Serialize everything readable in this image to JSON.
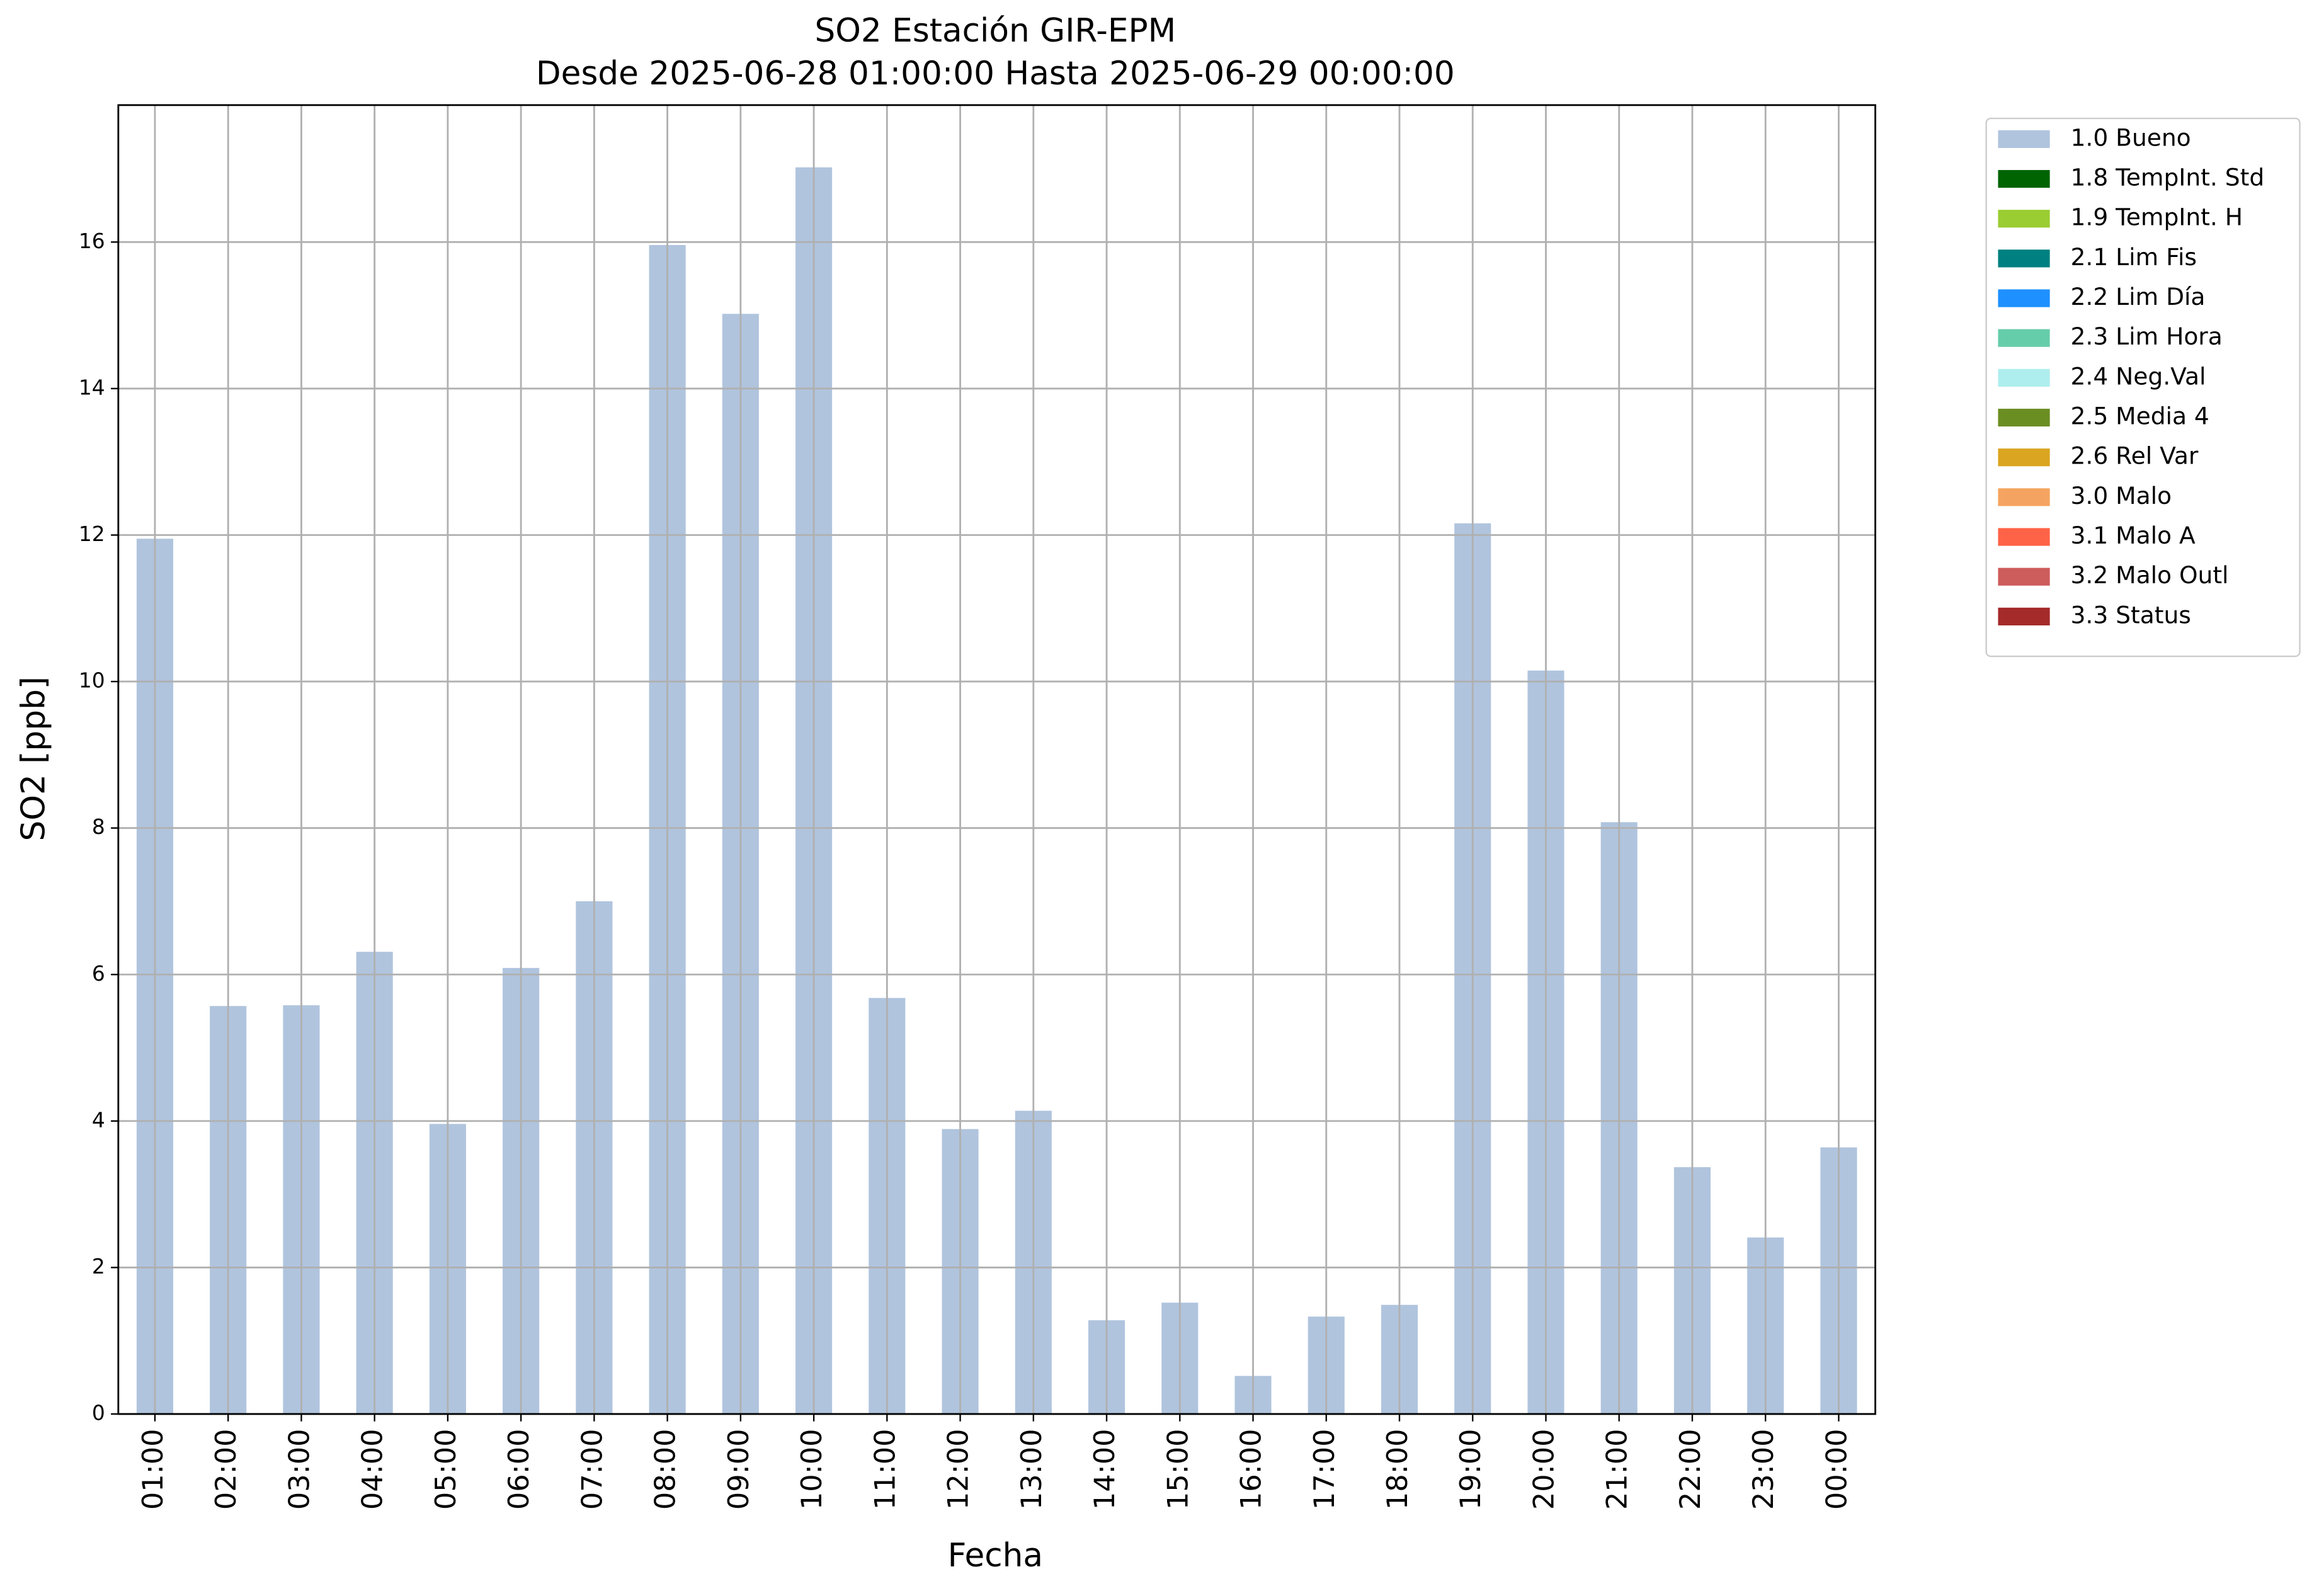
{
  "chart_data": {
    "type": "bar",
    "title": "SO2 Estación GIR-EPM",
    "subtitle": "Desde 2025-06-28 01:00:00 Hasta 2025-06-29 00:00:00",
    "x_label": "Fecha",
    "y_label": "SO2 [ppb]",
    "categories": [
      "01:00",
      "02:00",
      "03:00",
      "04:00",
      "05:00",
      "06:00",
      "07:00",
      "08:00",
      "09:00",
      "10:00",
      "11:00",
      "12:00",
      "13:00",
      "14:00",
      "15:00",
      "16:00",
      "17:00",
      "18:00",
      "19:00",
      "20:00",
      "21:00",
      "22:00",
      "23:00",
      "00:00"
    ],
    "series": [
      {
        "name": "1.0 Bueno",
        "color": "#b0c4de",
        "values": [
          11.95,
          5.57,
          5.58,
          6.31,
          3.96,
          6.09,
          7.0,
          15.96,
          15.02,
          17.02,
          5.68,
          3.89,
          4.14,
          1.28,
          1.52,
          0.52,
          1.33,
          1.49,
          12.16,
          10.15,
          8.08,
          3.37,
          2.41,
          3.64
        ]
      }
    ],
    "legend_entries": [
      {
        "name": "1.0 Bueno",
        "color": "#b0c4de"
      },
      {
        "name": "1.8 TempInt. Std",
        "color": "#006400"
      },
      {
        "name": "1.9 TempInt. H",
        "color": "#9acd32"
      },
      {
        "name": "2.1 Lim Fis",
        "color": "#008080"
      },
      {
        "name": "2.2 Lim Día",
        "color": "#1e90ff"
      },
      {
        "name": "2.3 Lim Hora",
        "color": "#66cdaa"
      },
      {
        "name": "2.4 Neg.Val",
        "color": "#afeeee"
      },
      {
        "name": "2.5 Media 4",
        "color": "#6b8e23"
      },
      {
        "name": "2.6 Rel Var",
        "color": "#daa520"
      },
      {
        "name": "3.0 Malo",
        "color": "#f4a460"
      },
      {
        "name": "3.1 Malo A",
        "color": "#ff6347"
      },
      {
        "name": "3.2 Malo Outl",
        "color": "#cd5c5c"
      },
      {
        "name": "3.3 Status",
        "color": "#a52a2a"
      }
    ],
    "ylim": [
      0,
      17.87
    ],
    "yticks": [
      0,
      2,
      4,
      6,
      8,
      10,
      12,
      14,
      16
    ],
    "grid": true,
    "legend_position": "outside-right"
  }
}
